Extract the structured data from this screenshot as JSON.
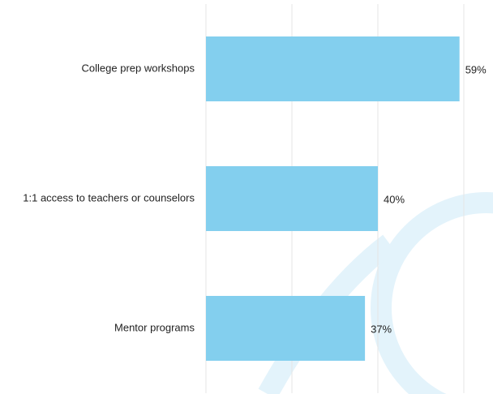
{
  "chart_data": {
    "type": "barh",
    "categories": [
      "College prep workshops",
      "1:1 access to teachers or counselors",
      "Mentor programs"
    ],
    "values": [
      59,
      40,
      37
    ],
    "value_labels": [
      "59%",
      "40%",
      "37%"
    ],
    "color": "#83cfee",
    "xlim": [
      0,
      60
    ],
    "xticks": [
      0,
      20,
      40,
      60
    ],
    "grid": true
  }
}
